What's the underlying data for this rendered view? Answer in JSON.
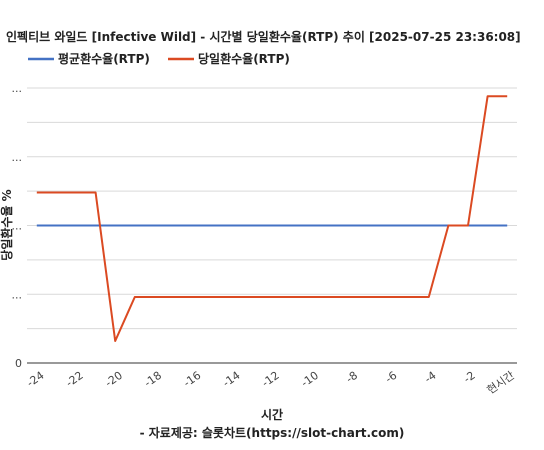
{
  "chart_data": {
    "type": "line",
    "title": "인펙티브 와일드 [Infective Wild] - 시간별 당일환수율(RTP) 추이 [2025-07-25 23:36:08]",
    "xlabel": "시간",
    "source": "- 자료제공: 슬롯차트(https://slot-chart.com)",
    "ylabel": "당일환수율 %",
    "x_tick_labels": [
      "-24",
      "-22",
      "-20",
      "-18",
      "-16",
      "-14",
      "-12",
      "-10",
      "-8",
      "-6",
      "-4",
      "-2",
      "현시간"
    ],
    "y_tick_labels": [
      "0",
      "...",
      "...",
      "...",
      "..."
    ],
    "x": [
      -24,
      -23,
      -22,
      -21,
      -20,
      -19,
      -18,
      -17,
      -16,
      -15,
      -14,
      -13,
      -12,
      -11,
      -10,
      -9,
      -8,
      -7,
      -6,
      -5,
      -4,
      -3,
      -2,
      -1,
      0
    ],
    "xlim": [
      -24.5,
      0.5
    ],
    "ylim": [
      0,
      100
    ],
    "grid": true,
    "legend_position": "top-left",
    "series": [
      {
        "name": "평균환수율(RTP)",
        "color": "#4472c4",
        "values": [
          50,
          50,
          50,
          50,
          50,
          50,
          50,
          50,
          50,
          50,
          50,
          50,
          50,
          50,
          50,
          50,
          50,
          50,
          50,
          50,
          50,
          50,
          50,
          50,
          50
        ]
      },
      {
        "name": "당일환수율(RTP)",
        "color": "#db4a22",
        "values": [
          62,
          62,
          62,
          62,
          8,
          24,
          24,
          24,
          24,
          24,
          24,
          24,
          24,
          24,
          24,
          24,
          24,
          24,
          24,
          24,
          24,
          50,
          50,
          97,
          97
        ]
      }
    ]
  }
}
